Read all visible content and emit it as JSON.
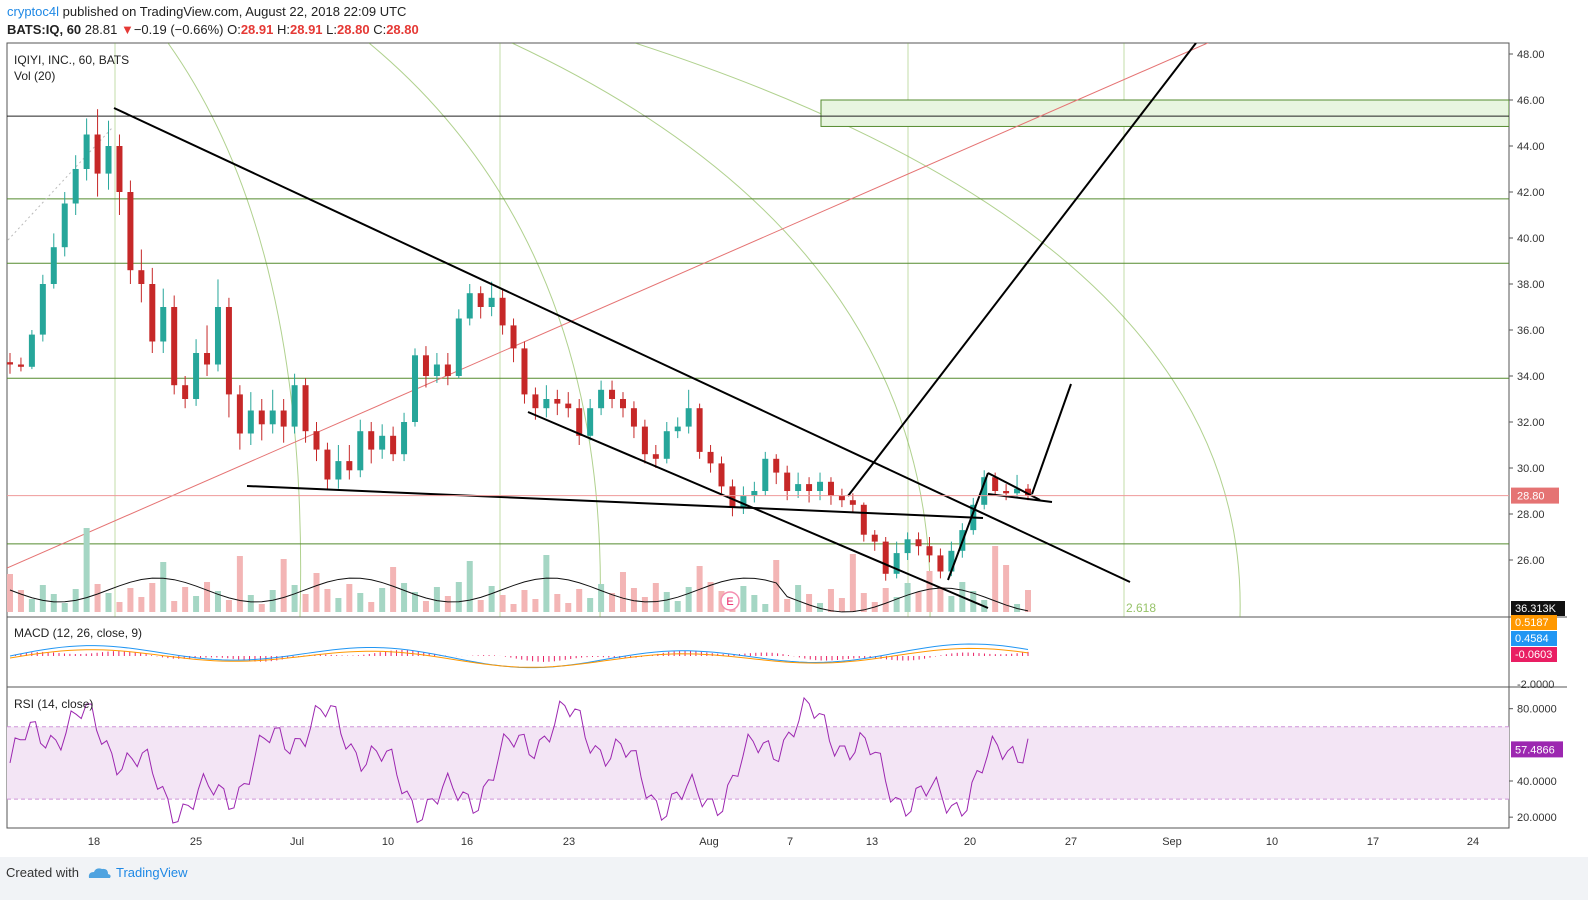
{
  "header": {
    "user": "cryptoc4l",
    "published": "published on TradingView.com, August 22, 2018 22:09 UTC",
    "symbol": "BATS:IQ, 60",
    "last": "28.81",
    "change": "−0.19 (−0.66%)",
    "o_label": "O:",
    "o": "28.91",
    "h_label": "H:",
    "h": "28.91",
    "l_label": "L:",
    "l": "28.80",
    "c_label": "C:",
    "c": "28.80"
  },
  "main_pane": {
    "title": "IQIYI, INC., 60, BATS",
    "volume_label": "Vol (20)"
  },
  "macd_pane": {
    "title": "MACD (12, 26, close, 9)"
  },
  "rsi_pane": {
    "title": "RSI (14, close)"
  },
  "footer": {
    "created": "Created with",
    "brand": "TradingView"
  },
  "colors": {
    "up": "#26a69a",
    "down": "#c62828",
    "trendline": "#000000",
    "fib": "#7cb342",
    "support": "#558b2f",
    "redline": "#e57373",
    "zone_fill": "#e8f5e0",
    "rsi_band": "#f3e5f5",
    "macd_line": "#2196f3",
    "signal_line": "#ff9800",
    "hist": "#e91e63",
    "rsi_line": "#9c27b0"
  },
  "chart_data": {
    "type": "candlestick",
    "title": "IQIYI, INC., 60, BATS",
    "x_ticks": [
      "18",
      "25",
      "Jul",
      "10",
      "16",
      "23",
      "Aug",
      "7",
      "13",
      "20",
      "27",
      "Sep",
      "10",
      "17",
      "24"
    ],
    "y_ticks": [
      "48.00",
      "46.00",
      "44.00",
      "42.00",
      "40.00",
      "38.00",
      "36.00",
      "34.00",
      "32.00",
      "30.00",
      "28.00",
      "26.00"
    ],
    "ylim": [
      24.5,
      48.5
    ],
    "last_price": "28.80",
    "volume_last": "36.313K",
    "fib_label": "2.618",
    "support_levels": [
      45.3,
      41.7,
      38.9,
      33.9,
      26.7
    ],
    "resistance_zone": [
      44.85,
      46.0
    ],
    "candles": [
      [
        34.6,
        34.5,
        35.0,
        34.1
      ],
      [
        34.5,
        34.4,
        34.8,
        34.2
      ],
      [
        34.4,
        35.8,
        36.0,
        34.3
      ],
      [
        35.8,
        38.0,
        38.4,
        35.5
      ],
      [
        38.0,
        39.6,
        40.2,
        37.8
      ],
      [
        39.6,
        41.5,
        42.0,
        39.2
      ],
      [
        41.5,
        43.0,
        43.6,
        41.0
      ],
      [
        43.0,
        44.5,
        45.2,
        42.5
      ],
      [
        44.5,
        42.8,
        45.6,
        41.8
      ],
      [
        42.8,
        44.0,
        45.1,
        42.1
      ],
      [
        44.0,
        42.0,
        44.5,
        41.0
      ],
      [
        42.0,
        38.6,
        42.5,
        38.0
      ],
      [
        38.6,
        38.0,
        39.5,
        37.2
      ],
      [
        38.0,
        35.5,
        38.7,
        35.0
      ],
      [
        35.5,
        37.0,
        37.8,
        35.0
      ],
      [
        37.0,
        33.6,
        37.5,
        33.2
      ],
      [
        33.6,
        33.0,
        34.0,
        32.6
      ],
      [
        33.0,
        35.0,
        35.6,
        32.7
      ],
      [
        35.0,
        34.5,
        36.2,
        34.0
      ],
      [
        34.5,
        37.0,
        38.2,
        34.2
      ],
      [
        37.0,
        33.2,
        37.4,
        32.2
      ],
      [
        33.2,
        31.5,
        33.6,
        30.8
      ],
      [
        31.5,
        32.5,
        33.3,
        31.0
      ],
      [
        32.5,
        31.9,
        33.0,
        31.2
      ],
      [
        31.9,
        32.5,
        33.4,
        31.5
      ],
      [
        32.5,
        31.8,
        33.0,
        31.1
      ],
      [
        31.8,
        33.6,
        34.1,
        31.5
      ],
      [
        33.6,
        31.6,
        33.9,
        31.1
      ],
      [
        31.6,
        30.8,
        32.0,
        30.3
      ],
      [
        30.8,
        29.5,
        31.1,
        29.1
      ],
      [
        29.5,
        30.3,
        31.0,
        29.1
      ],
      [
        30.3,
        29.9,
        31.0,
        29.5
      ],
      [
        29.9,
        31.6,
        32.1,
        29.6
      ],
      [
        31.6,
        30.8,
        32.0,
        30.2
      ],
      [
        30.8,
        31.4,
        31.9,
        30.4
      ],
      [
        31.4,
        30.6,
        31.8,
        30.3
      ],
      [
        30.6,
        32.0,
        32.4,
        30.3
      ],
      [
        32.0,
        34.9,
        35.2,
        31.8
      ],
      [
        34.9,
        34.0,
        35.3,
        33.5
      ],
      [
        34.0,
        34.5,
        35.0,
        33.7
      ],
      [
        34.5,
        34.0,
        35.0,
        33.6
      ],
      [
        34.0,
        36.5,
        36.9,
        33.9
      ],
      [
        36.5,
        37.6,
        38.0,
        36.2
      ],
      [
        37.6,
        37.0,
        37.9,
        36.5
      ],
      [
        37.0,
        37.4,
        38.1,
        36.6
      ],
      [
        37.4,
        36.2,
        37.8,
        35.8
      ],
      [
        36.2,
        35.2,
        36.5,
        34.6
      ],
      [
        35.2,
        33.2,
        35.5,
        32.8
      ],
      [
        33.2,
        32.6,
        33.5,
        32.1
      ],
      [
        32.6,
        33.0,
        33.6,
        32.2
      ],
      [
        33.0,
        32.8,
        33.4,
        32.3
      ],
      [
        32.8,
        32.6,
        33.3,
        32.2
      ],
      [
        32.6,
        31.4,
        33.0,
        31.0
      ],
      [
        31.4,
        32.6,
        33.0,
        31.2
      ],
      [
        32.6,
        33.4,
        33.8,
        32.3
      ],
      [
        33.4,
        33.0,
        33.8,
        32.6
      ],
      [
        33.0,
        32.6,
        33.3,
        32.2
      ],
      [
        32.6,
        31.8,
        32.9,
        31.3
      ],
      [
        31.8,
        30.6,
        32.1,
        30.2
      ],
      [
        30.6,
        30.4,
        31.0,
        30.0
      ],
      [
        30.4,
        31.6,
        32.0,
        30.2
      ],
      [
        31.6,
        31.8,
        32.2,
        31.3
      ],
      [
        31.8,
        32.6,
        33.4,
        31.5
      ],
      [
        32.6,
        30.7,
        32.8,
        30.4
      ],
      [
        30.7,
        30.2,
        31.0,
        29.8
      ],
      [
        30.2,
        29.2,
        30.5,
        28.9
      ],
      [
        29.2,
        28.3,
        29.5,
        27.9
      ],
      [
        28.3,
        28.8,
        29.2,
        28.0
      ],
      [
        28.8,
        29.0,
        29.4,
        28.5
      ],
      [
        29.0,
        30.4,
        30.7,
        28.8
      ],
      [
        30.4,
        29.8,
        30.6,
        29.3
      ],
      [
        29.8,
        29.0,
        30.1,
        28.6
      ],
      [
        29.0,
        29.3,
        29.8,
        28.7
      ],
      [
        29.3,
        29.0,
        29.6,
        28.5
      ],
      [
        29.0,
        29.4,
        29.8,
        28.6
      ],
      [
        29.4,
        28.8,
        29.6,
        28.4
      ],
      [
        28.8,
        28.6,
        29.1,
        28.3
      ],
      [
        28.6,
        28.4,
        28.9,
        28.1
      ],
      [
        28.4,
        27.1,
        28.5,
        26.8
      ],
      [
        27.1,
        26.8,
        27.3,
        26.4
      ],
      [
        26.8,
        25.4,
        27.0,
        25.1
      ],
      [
        25.4,
        26.3,
        26.8,
        25.2
      ],
      [
        26.3,
        26.9,
        27.2,
        26.0
      ],
      [
        26.9,
        26.6,
        27.2,
        26.2
      ],
      [
        26.6,
        26.2,
        27.0,
        25.9
      ],
      [
        26.2,
        25.5,
        26.5,
        25.2
      ],
      [
        25.5,
        26.4,
        26.8,
        25.3
      ],
      [
        26.4,
        27.3,
        27.6,
        26.1
      ],
      [
        27.3,
        28.4,
        28.7,
        27.1
      ],
      [
        28.4,
        29.6,
        29.9,
        28.2
      ],
      [
        29.6,
        29.0,
        29.8,
        28.8
      ],
      [
        29.0,
        28.9,
        29.3,
        28.6
      ],
      [
        28.9,
        29.1,
        29.7,
        28.7
      ],
      [
        29.1,
        28.8,
        29.3,
        28.6
      ]
    ],
    "rsi_levels": [
      70,
      30
    ],
    "macd_values": [
      "0.5187",
      "0.4584",
      "-0.0603"
    ],
    "macd_axis": "-2.0000",
    "rsi_ticks": [
      "80.0000",
      "40.0000",
      "20.0000"
    ],
    "rsi_last": "57.4866"
  }
}
